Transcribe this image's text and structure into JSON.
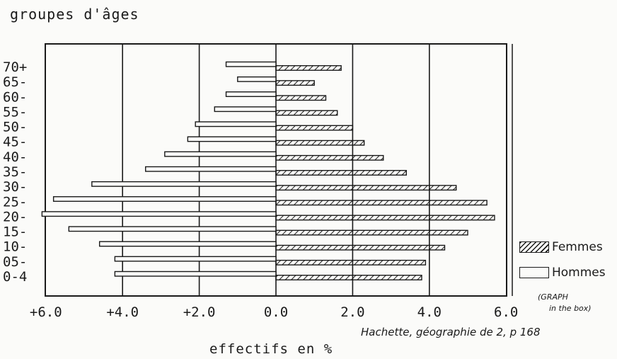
{
  "chart_data": {
    "type": "bar",
    "orientation": "horizontal",
    "title": "groupes d'âges",
    "xlabel": "effectifs en %",
    "credit": "Hachette, géographie de 2, p 168",
    "note_line1": "(GRAPH",
    "note_line2": "in the box)",
    "categories": [
      "0-4",
      "05-",
      "10-",
      "15-",
      "20-",
      "25-",
      "30-",
      "35-",
      "40-",
      "45-",
      "50-",
      "55-",
      "60-",
      "65-",
      "70+"
    ],
    "series": [
      {
        "name": "Hommes",
        "values": [
          4.2,
          4.2,
          4.6,
          5.4,
          6.1,
          5.8,
          4.8,
          3.4,
          2.9,
          2.3,
          2.1,
          1.6,
          1.3,
          1.0,
          1.3
        ]
      },
      {
        "name": "Femmes",
        "values": [
          3.8,
          3.9,
          4.4,
          5.0,
          5.7,
          5.5,
          4.7,
          3.4,
          2.8,
          2.3,
          2.0,
          1.6,
          1.3,
          1.0,
          1.7
        ]
      }
    ],
    "xlim": [
      -6.0,
      6.0
    ],
    "xticks": [
      {
        "value": -6.0,
        "label": "+6.0"
      },
      {
        "value": -4.0,
        "label": "+4.0"
      },
      {
        "value": -2.0,
        "label": "+2.0"
      },
      {
        "value": 0.0,
        "label": "0.0"
      },
      {
        "value": 2.0,
        "label": "2.0"
      },
      {
        "value": 4.0,
        "label": "4.0"
      },
      {
        "value": 6.0,
        "label": "6.0"
      }
    ],
    "grid": true,
    "legend_position": "right",
    "legend": [
      {
        "label": "Femmes",
        "style": "hatched"
      },
      {
        "label": "Hommes",
        "style": "open"
      }
    ]
  }
}
